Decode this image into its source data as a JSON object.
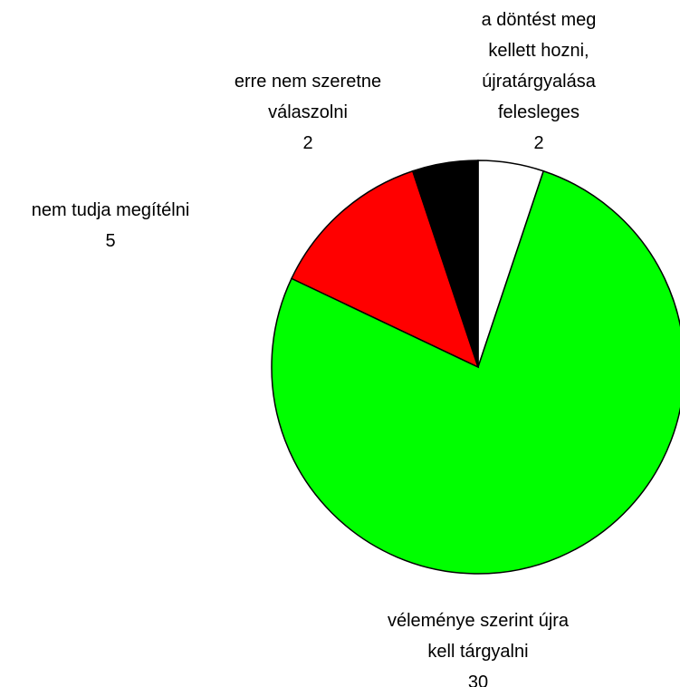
{
  "chart_data": {
    "type": "pie",
    "categories": [
      "a döntést meg kellett hozni, újratárgyalása felesleges",
      "véleménye szerint újra kell tárgyalni",
      "nem tudja megítélni",
      "erre nem szeretne válaszolni"
    ],
    "values": [
      2,
      30,
      5,
      2
    ],
    "colors": [
      "#ffffff",
      "#00ff00",
      "#ff0000",
      "#000000"
    ]
  }
}
